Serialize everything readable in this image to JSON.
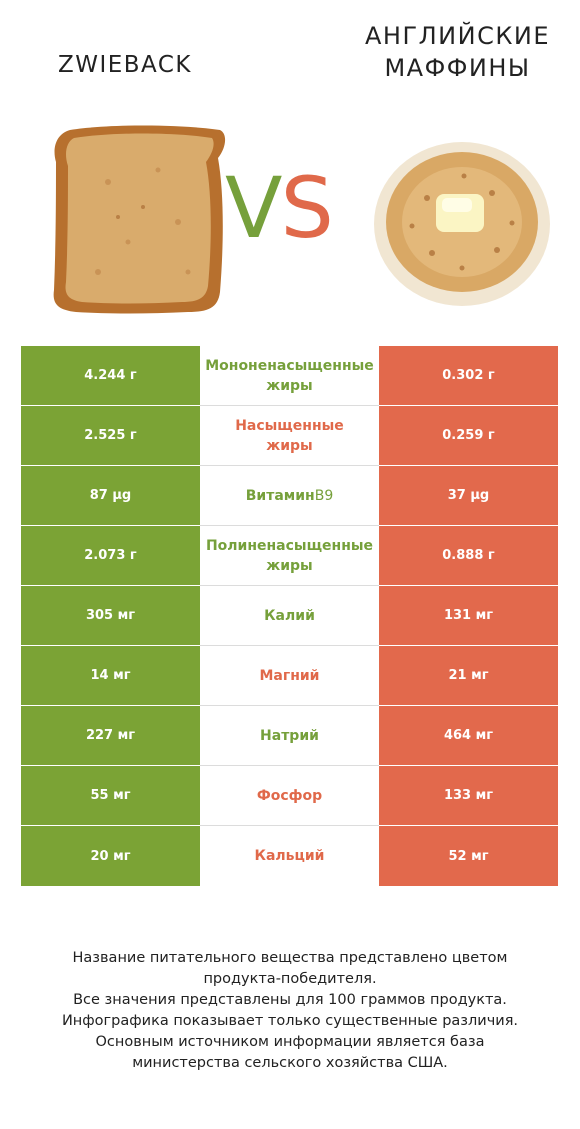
{
  "header": {
    "left_title": "ZWIEBACK",
    "right_title_line1": "АНГЛИЙСКИЕ",
    "right_title_line2": "МАФФИНЫ",
    "vs_v": "V",
    "vs_s": "S"
  },
  "colors": {
    "green": "#7ba335",
    "orange": "#e2694c"
  },
  "rows": [
    {
      "left": "4.244 г",
      "label": "Мононенасыщенные\nжиры",
      "winner": "green",
      "right": "0.302 г"
    },
    {
      "left": "2.525 г",
      "label": "Насыщенные\nжиры",
      "winner": "orange",
      "right": "0.259 г"
    },
    {
      "left": "87 µg",
      "label": "Витамин ",
      "label_suffix": "B9",
      "winner": "green",
      "right": "37 µg"
    },
    {
      "left": "2.073 г",
      "label": "Полиненасыщенные\nжиры",
      "winner": "green",
      "right": "0.888 г"
    },
    {
      "left": "305 мг",
      "label": "Калий",
      "winner": "green",
      "right": "131 мг"
    },
    {
      "left": "14 мг",
      "label": "Магний",
      "winner": "orange",
      "right": "21 мг"
    },
    {
      "left": "227 мг",
      "label": "Натрий",
      "winner": "green",
      "right": "464 мг"
    },
    {
      "left": "55 мг",
      "label": "Фосфор",
      "winner": "orange",
      "right": "133 мг"
    },
    {
      "left": "20 мг",
      "label": "Кальций",
      "winner": "orange",
      "right": "52 мг"
    }
  ],
  "footnote": {
    "line1": "Название питательного вещества представлено цветом",
    "line2": "продукта-победителя.",
    "line3": "Все значения представлены для 100 граммов продукта.",
    "line4": "Инфографика показывает только существенные различия.",
    "line5": "Основным источником информации является база",
    "line6": "министерства сельского хозяйства США."
  }
}
